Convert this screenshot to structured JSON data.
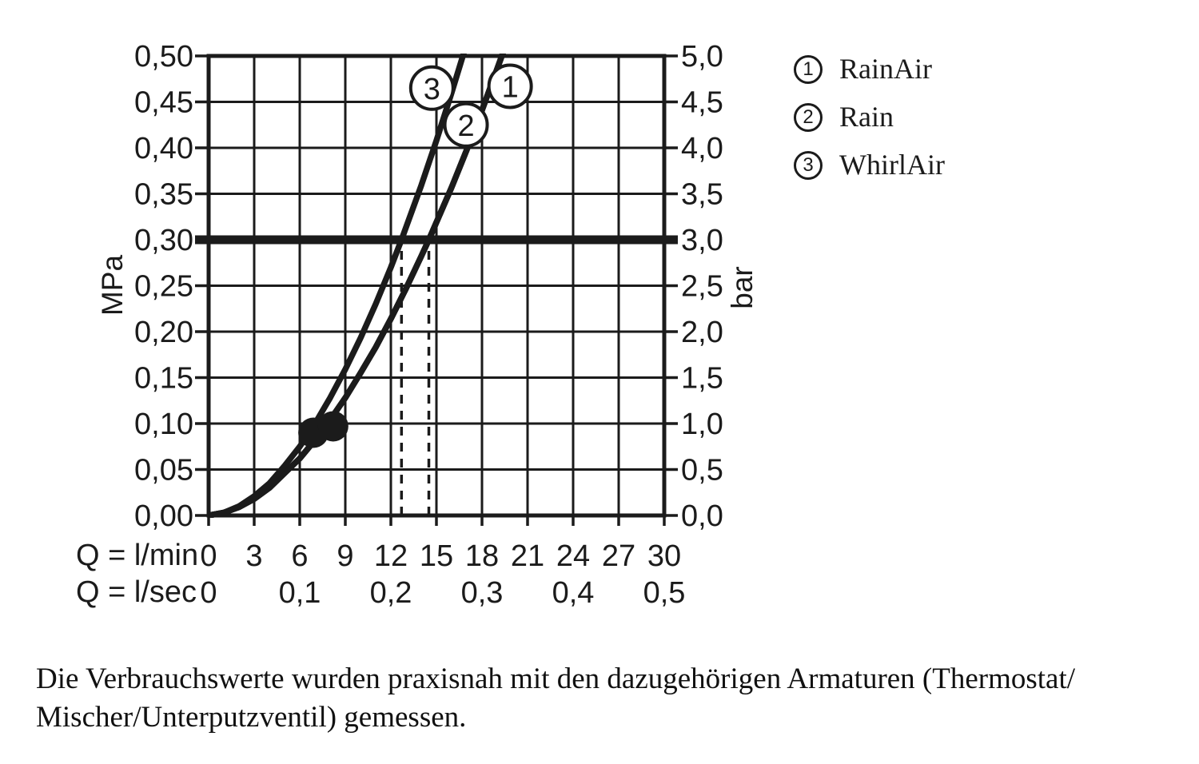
{
  "chart_data": {
    "type": "line",
    "x_axis": {
      "rows": [
        {
          "label": "Q = l/min",
          "tick_labels": [
            "0",
            "3",
            "6",
            "9",
            "12",
            "15",
            "18",
            "21",
            "24",
            "27",
            "30"
          ],
          "tick_values": [
            0,
            3,
            6,
            9,
            12,
            15,
            18,
            21,
            24,
            27,
            30
          ]
        },
        {
          "label": "Q = l/sec",
          "tick_labels": [
            "0",
            "0,1",
            "0,2",
            "0,3",
            "0,4",
            "0,5"
          ],
          "tick_values": [
            0,
            6,
            12,
            18,
            24,
            30
          ]
        }
      ],
      "range_lmin": [
        0,
        30
      ]
    },
    "y_axis_left": {
      "label": "MPa",
      "tick_labels": [
        "0,50",
        "0,45",
        "0,40",
        "0,35",
        "0,30",
        "0,25",
        "0,20",
        "0,15",
        "0,10",
        "0,05",
        "0,00"
      ],
      "range": [
        0,
        0.5
      ]
    },
    "y_axis_right": {
      "label": "bar",
      "tick_labels": [
        "5,0",
        "4,5",
        "4,0",
        "3,5",
        "3,0",
        "2,5",
        "2,0",
        "1,5",
        "1,0",
        "0,5",
        "0,0"
      ],
      "range": [
        0,
        5
      ]
    },
    "grid": true,
    "reference_line_bar": 3.0,
    "guide_lines_lmin": [
      12.7,
      14.5
    ],
    "marker_dots": [
      {
        "lmin": 6.9,
        "bar": 0.9
      },
      {
        "lmin": 8.2,
        "bar": 0.97
      }
    ],
    "series": [
      {
        "num": "1",
        "name": "RainAir",
        "points": [
          [
            0,
            0
          ],
          [
            1,
            0.03
          ],
          [
            2,
            0.09
          ],
          [
            3,
            0.18
          ],
          [
            4,
            0.3
          ],
          [
            5,
            0.46
          ],
          [
            6,
            0.62
          ],
          [
            7,
            0.82
          ],
          [
            8,
            1.04
          ],
          [
            9,
            1.28
          ],
          [
            10,
            1.55
          ],
          [
            11,
            1.83
          ],
          [
            12,
            2.14
          ],
          [
            13,
            2.47
          ],
          [
            14,
            2.82
          ],
          [
            14.5,
            3.0
          ],
          [
            16,
            3.57
          ],
          [
            17,
            3.98
          ],
          [
            18,
            4.41
          ],
          [
            19,
            4.86
          ],
          [
            19.7,
            5.18
          ]
        ]
      },
      {
        "num": "2",
        "name": "Rain",
        "points": [
          [
            0,
            0
          ],
          [
            1,
            0.03
          ],
          [
            2,
            0.09
          ],
          [
            3,
            0.18
          ],
          [
            4,
            0.3
          ],
          [
            5,
            0.46
          ],
          [
            6,
            0.62
          ],
          [
            7,
            0.82
          ],
          [
            8,
            1.04
          ],
          [
            9,
            1.28
          ],
          [
            10,
            1.55
          ],
          [
            11,
            1.83
          ],
          [
            12,
            2.14
          ],
          [
            13,
            2.47
          ],
          [
            14,
            2.82
          ],
          [
            14.5,
            3.0
          ],
          [
            16,
            3.57
          ],
          [
            17,
            3.98
          ],
          [
            18,
            4.41
          ],
          [
            19,
            4.86
          ],
          [
            19.7,
            5.18
          ]
        ]
      },
      {
        "num": "3",
        "name": "WhirlAir",
        "points": [
          [
            0,
            0
          ],
          [
            1,
            0.03
          ],
          [
            2,
            0.1
          ],
          [
            3,
            0.21
          ],
          [
            4,
            0.35
          ],
          [
            5,
            0.54
          ],
          [
            6,
            0.75
          ],
          [
            6.9,
            0.97
          ],
          [
            8,
            1.28
          ],
          [
            9,
            1.59
          ],
          [
            10,
            1.93
          ],
          [
            11,
            2.3
          ],
          [
            12,
            2.7
          ],
          [
            12.7,
            3.0
          ],
          [
            14,
            3.59
          ],
          [
            15,
            4.08
          ],
          [
            16,
            4.6
          ],
          [
            17,
            5.14
          ]
        ]
      }
    ],
    "curve_badges": [
      {
        "num": "1",
        "lmin": 19.85,
        "bar": 4.67
      },
      {
        "num": "2",
        "lmin": 16.95,
        "bar": 4.25
      },
      {
        "num": "3",
        "lmin": 14.7,
        "bar": 4.65
      }
    ]
  },
  "legend": [
    {
      "num": "1",
      "label": "RainAir"
    },
    {
      "num": "2",
      "label": "Rain"
    },
    {
      "num": "3",
      "label": "WhirlAir"
    }
  ],
  "footer": {
    "lines": [
      "Die Verbrauchswerte wurden praxisnah mit den dazugehörigen Armaturen (Thermostat/",
      "Mischer/Unterputzventil) gemessen."
    ]
  },
  "colors": {
    "ink": "#1b1b1b",
    "background": "#ffffff"
  }
}
